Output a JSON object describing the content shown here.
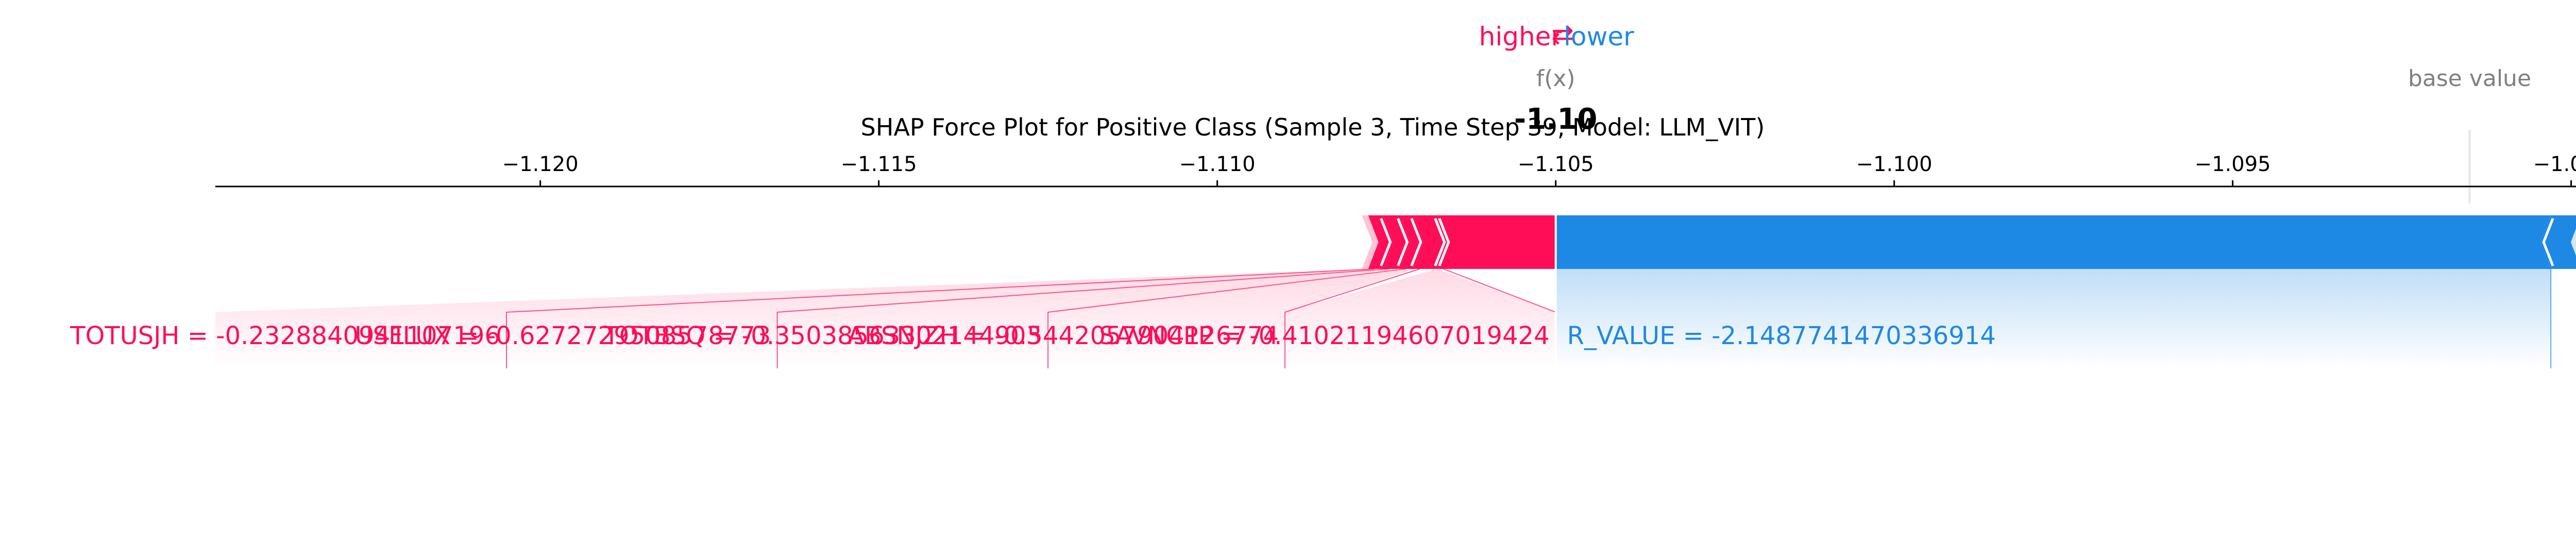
{
  "chart_data": {
    "type": "force",
    "title": "SHAP Force Plot for Positive Class (Sample 3, Time Step 39, Model: LLM_VIT)",
    "legend": {
      "higher_label": "higher",
      "lower_label": "lower",
      "arrow_symbol": "⇄"
    },
    "output_label": "f(x)",
    "output_value": -1.105,
    "output_value_text": "-1.10",
    "base_value_label": "base value",
    "base_value": -1.0915,
    "xlim": [
      -1.1248,
      -1.0897
    ],
    "ticks": [
      -1.12,
      -1.115,
      -1.11,
      -1.105,
      -1.1,
      -1.095,
      -1.09
    ],
    "tick_labels": [
      "−1.120",
      "−1.115",
      "−1.110",
      "−1.105",
      "−1.100",
      "−1.095",
      "−1.090"
    ],
    "positive_features": [
      {
        "label": "TOTUSJH = -0.2328840941107196",
        "value": 0.00022,
        "text_end": -1.1205
      },
      {
        "label": "USFLUX = -0.6272729508578773",
        "value": 0.00025,
        "text_end": -1.1165
      },
      {
        "label": "TOTBSQ = -0.35038563302144903",
        "value": 0.0002,
        "text_end": -1.1125
      },
      {
        "label": "ABSNJZH = -0.5442057904126774",
        "value": 0.00035,
        "text_end": -1.109
      },
      {
        "label": "SAVNCPP = -0.41021194607019424",
        "value": 0.00175,
        "text_end": -1.105
      }
    ],
    "negative_features": [
      {
        "label": "R_VALUE = -2.1487741470336914",
        "value": 0.0147
      }
    ],
    "colors": {
      "positive": "#ff0d57",
      "negative": "#1e88e5",
      "positive_light": "#ffc3d5",
      "negative_light": "#d1e6fa",
      "text_gray": "#808080"
    }
  }
}
